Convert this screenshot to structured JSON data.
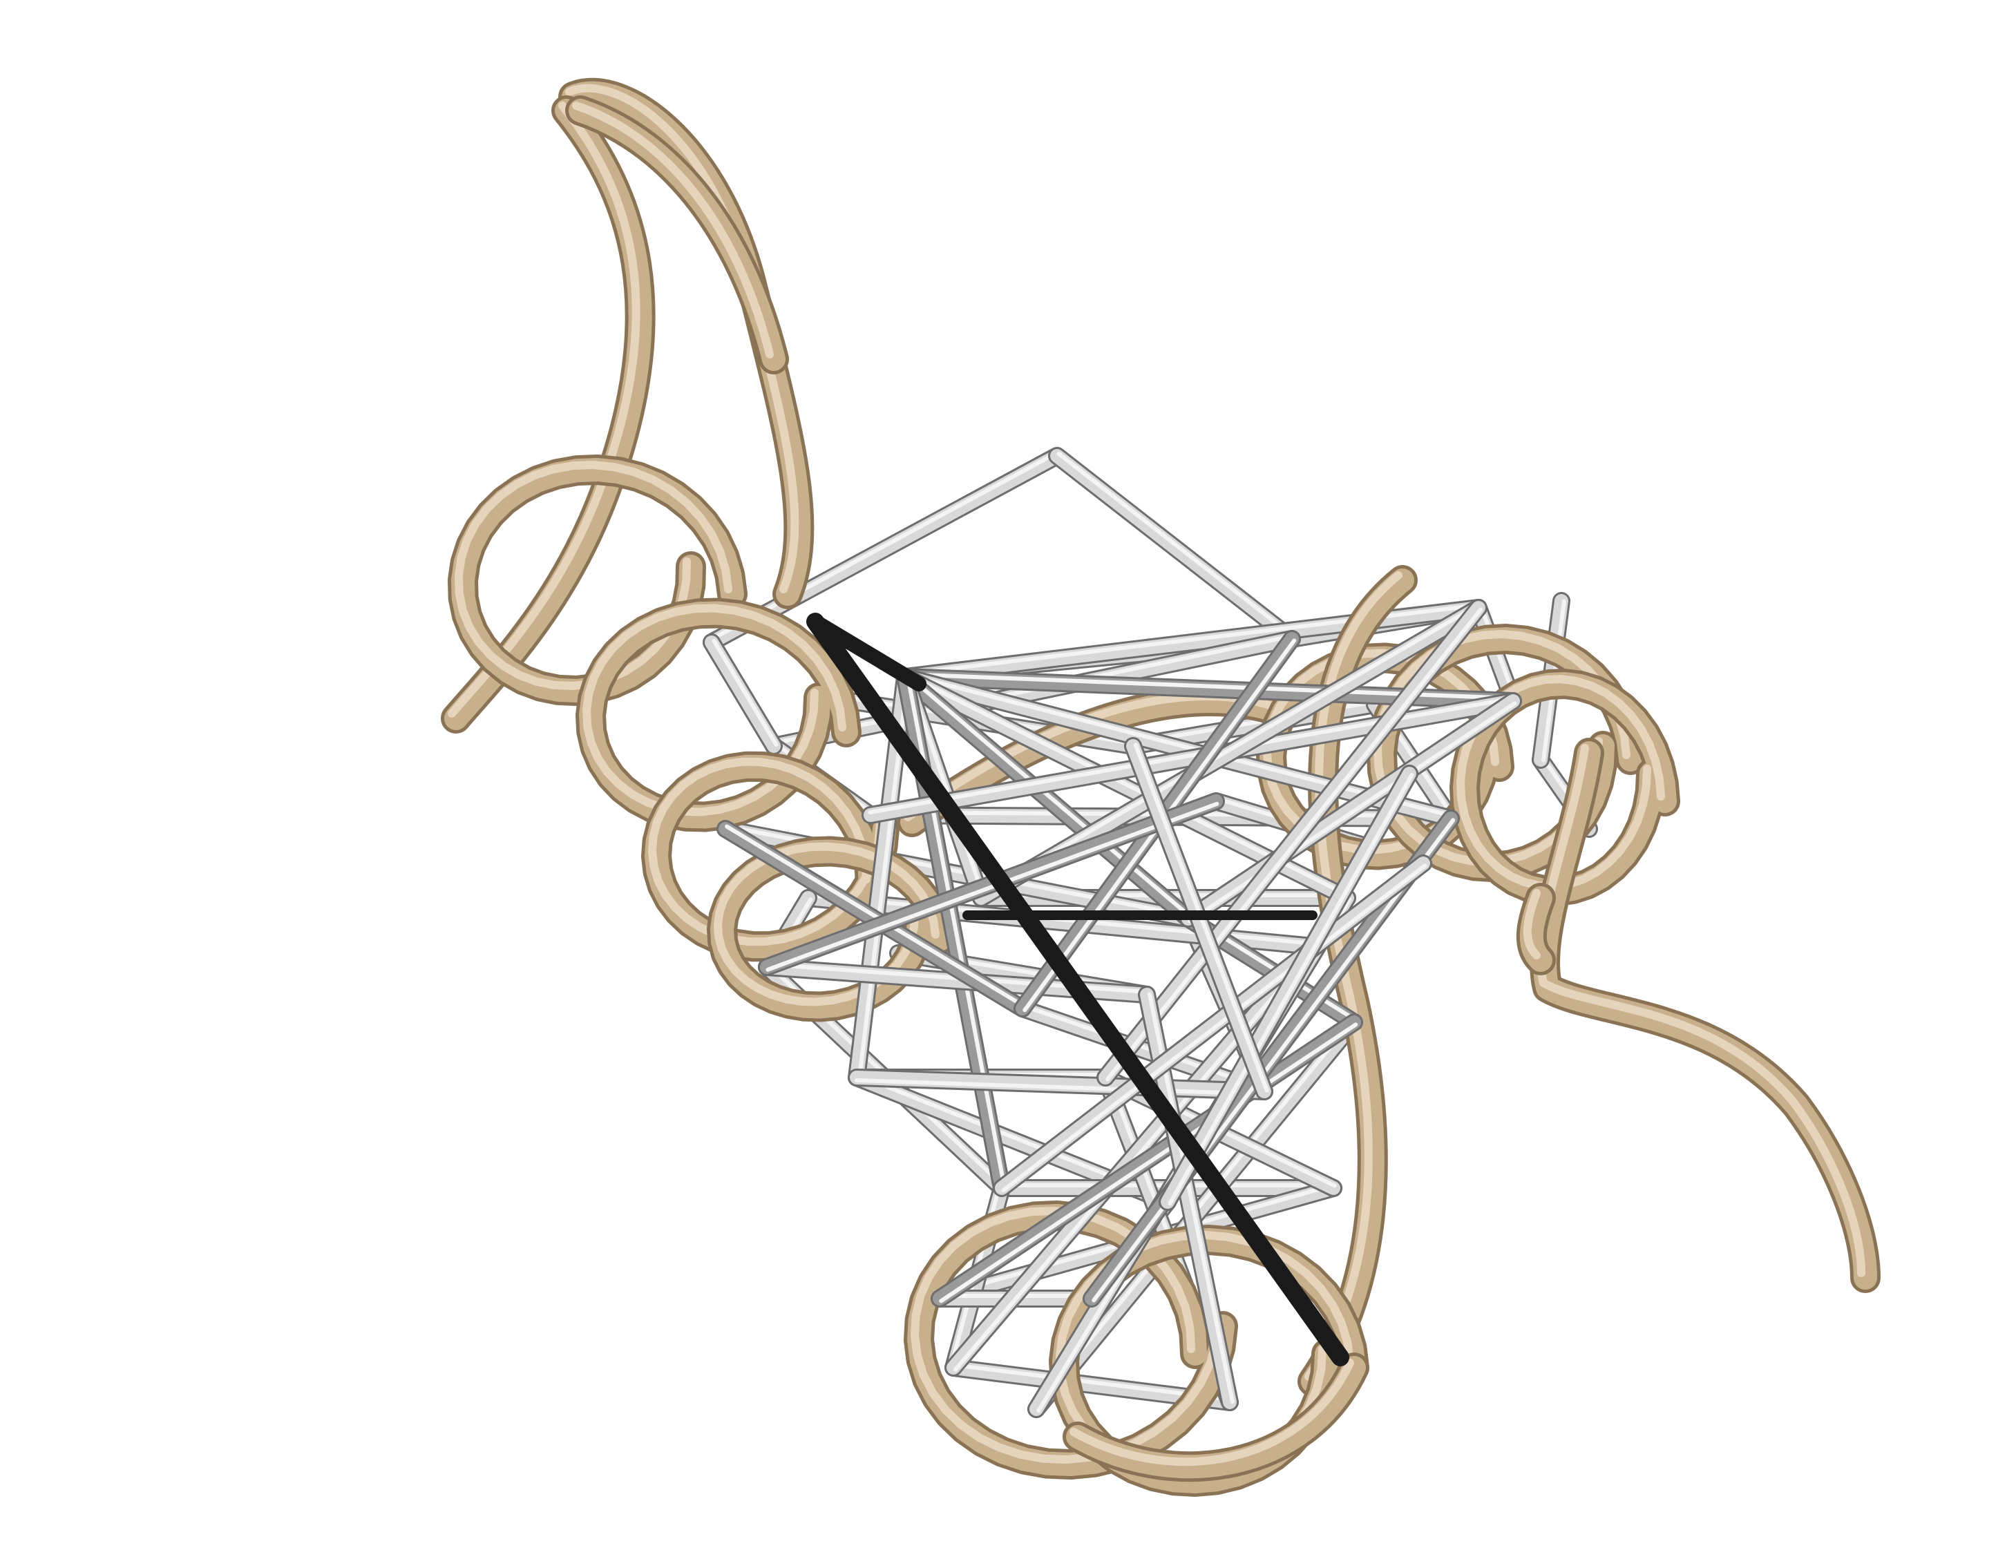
{
  "scene": {
    "kind": "protein-ribbon-render",
    "background_color": "#ffffff",
    "colors": {
      "backbone": "#c9b08d",
      "backbone_dark": "#8a7354",
      "backbone_light": "#efe2cc",
      "bond_light": "#d9d9d9",
      "bond_mid": "#9a9a9a",
      "bond_dark": "#5a5a5a",
      "bond_highlight": "#1a1a1a"
    },
    "contact_count": 60,
    "highlighted_contact_count": 2
  }
}
